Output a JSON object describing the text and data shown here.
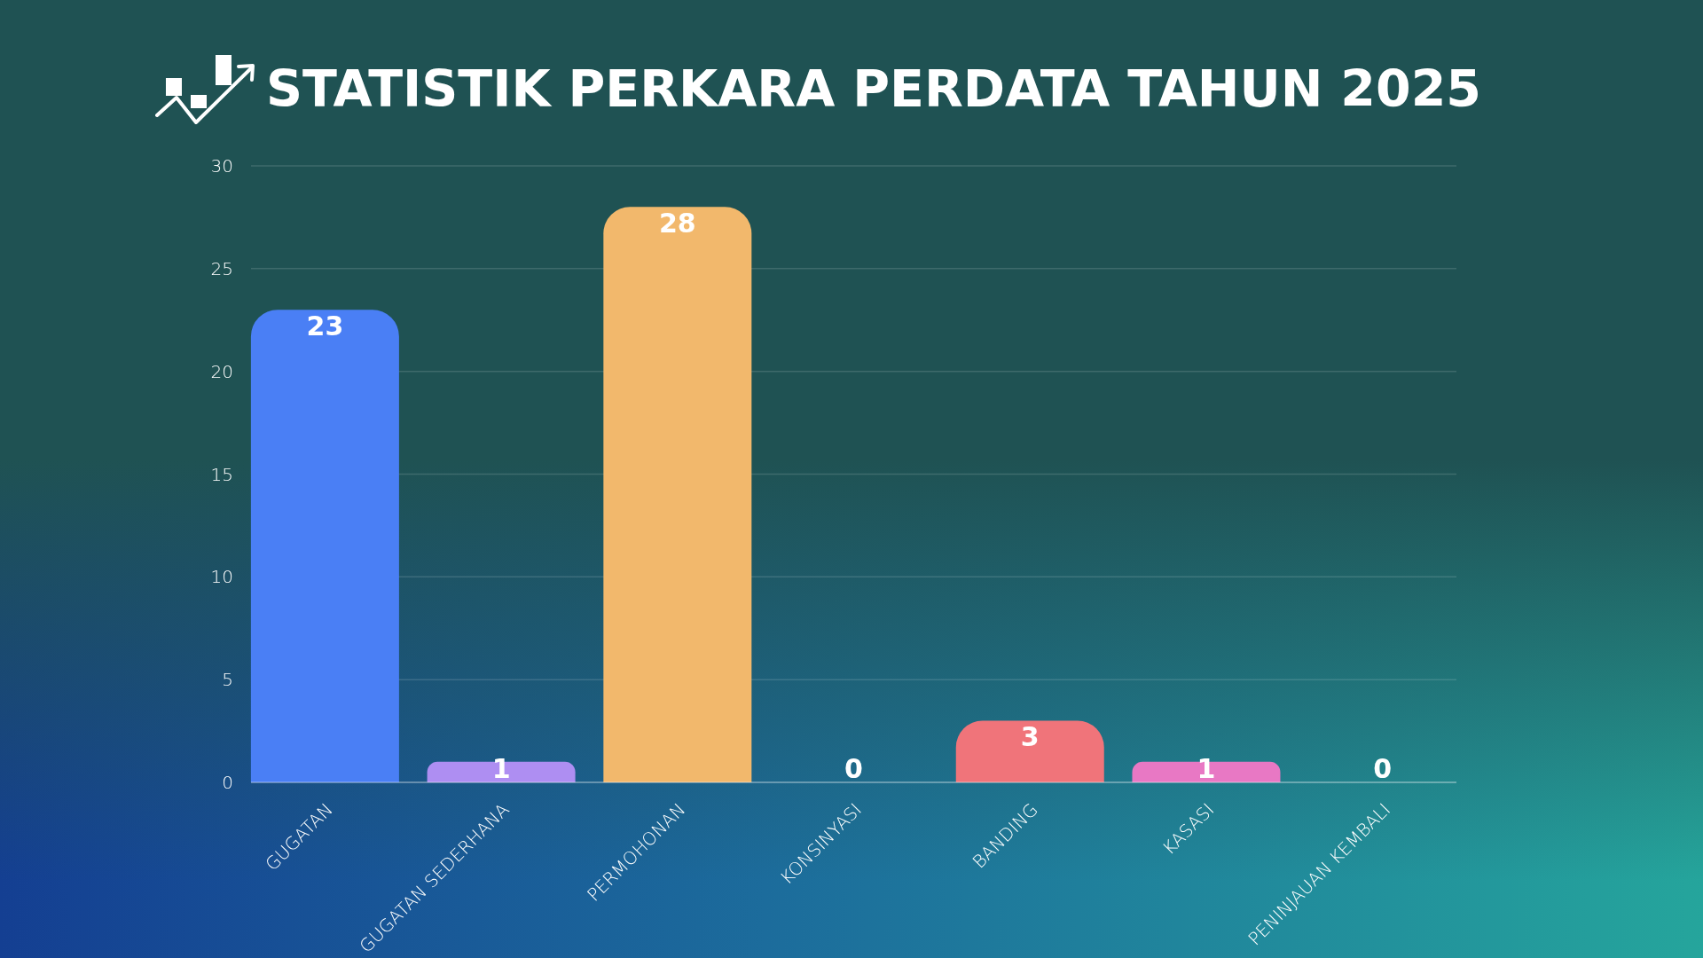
{
  "chart_data": {
    "type": "bar",
    "title": "STATISTIK PERKARA PERDATA TAHUN 2025",
    "categories": [
      "GUGATAN",
      "GUGATAN SEDERHANA",
      "PERMOHONAN",
      "KONSINYASI",
      "BANDING",
      "KASASI",
      "PENINJAUAN KEMBALI"
    ],
    "values": [
      23,
      1,
      28,
      0,
      3,
      1,
      0
    ],
    "colors": [
      "#4a7ff5",
      "#ae8ef2",
      "#f2b86c",
      null,
      "#f0747a",
      "#e878c4",
      null
    ],
    "ylim": [
      0,
      30
    ],
    "yticks": [
      0,
      5,
      10,
      15,
      20,
      25,
      30
    ],
    "grid": "y",
    "data_labels": true
  }
}
